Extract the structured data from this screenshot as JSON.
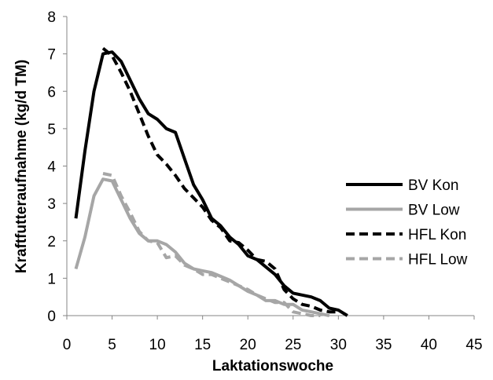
{
  "chart_data": {
    "type": "line",
    "xlabel": "Laktationswoche",
    "ylabel": "Kraftfutteraufnahme (kg/d TM)",
    "xlim": [
      0,
      45
    ],
    "ylim": [
      0,
      8
    ],
    "xticks": [
      0,
      5,
      10,
      15,
      20,
      25,
      30,
      35,
      40,
      45
    ],
    "yticks": [
      0,
      1,
      2,
      3,
      4,
      5,
      6,
      7,
      8
    ],
    "grid": false,
    "legend_position": "right",
    "series": [
      {
        "name": "BV Kon",
        "color": "#000000",
        "dash": "solid",
        "x": [
          1,
          2,
          3,
          4,
          5,
          6,
          7,
          8,
          9,
          10,
          11,
          12,
          13,
          14,
          15,
          16,
          17,
          18,
          19,
          20,
          21,
          22,
          23,
          24,
          25,
          26,
          27,
          28,
          29,
          30,
          31
        ],
        "y": [
          2.6,
          4.4,
          6.0,
          7.0,
          7.05,
          6.8,
          6.3,
          5.8,
          5.4,
          5.25,
          5.0,
          4.9,
          4.2,
          3.5,
          3.1,
          2.6,
          2.4,
          2.1,
          1.9,
          1.6,
          1.5,
          1.3,
          1.1,
          0.8,
          0.6,
          0.55,
          0.5,
          0.4,
          0.2,
          0.15,
          0.0
        ]
      },
      {
        "name": "BV Low",
        "color": "#a6a6a6",
        "dash": "solid",
        "x": [
          1,
          2,
          3,
          4,
          5,
          6,
          7,
          8,
          9,
          10,
          11,
          12,
          13,
          14,
          15,
          16,
          17,
          18,
          19,
          20,
          21,
          22,
          23,
          24,
          25,
          26,
          27,
          28,
          29
        ],
        "y": [
          1.25,
          2.1,
          3.2,
          3.65,
          3.6,
          3.1,
          2.6,
          2.2,
          2.0,
          2.0,
          1.9,
          1.7,
          1.4,
          1.25,
          1.2,
          1.15,
          1.05,
          0.95,
          0.8,
          0.65,
          0.55,
          0.4,
          0.4,
          0.3,
          0.3,
          0.15,
          0.1,
          0.05,
          0.0
        ]
      },
      {
        "name": "HFL Kon",
        "color": "#000000",
        "dash": "dashed",
        "x": [
          4,
          5,
          6,
          7,
          8,
          9,
          10,
          11,
          12,
          13,
          14,
          15,
          16,
          17,
          18,
          19,
          20,
          21,
          22,
          23,
          24,
          25,
          26,
          27,
          28,
          29,
          30
        ],
        "y": [
          7.15,
          6.95,
          6.5,
          6.0,
          5.4,
          4.8,
          4.3,
          4.05,
          3.75,
          3.4,
          3.15,
          2.9,
          2.55,
          2.35,
          2.0,
          1.95,
          1.75,
          1.5,
          1.45,
          1.25,
          0.7,
          0.45,
          0.3,
          0.25,
          0.15,
          0.1,
          0.1
        ]
      },
      {
        "name": "HFL Low",
        "color": "#a6a6a6",
        "dash": "dashed",
        "x": [
          4,
          5,
          6,
          7,
          8,
          9,
          10,
          11,
          12,
          13,
          14,
          15,
          16,
          17,
          18,
          19,
          20,
          21,
          22,
          23,
          24,
          25,
          26,
          27,
          28
        ],
        "y": [
          3.8,
          3.75,
          3.2,
          2.75,
          2.25,
          2.0,
          1.95,
          1.55,
          1.6,
          1.35,
          1.25,
          1.1,
          1.1,
          1.0,
          0.9,
          0.8,
          0.7,
          0.55,
          0.45,
          0.35,
          0.35,
          0.1,
          0.05,
          0.0,
          0.0
        ]
      }
    ]
  }
}
